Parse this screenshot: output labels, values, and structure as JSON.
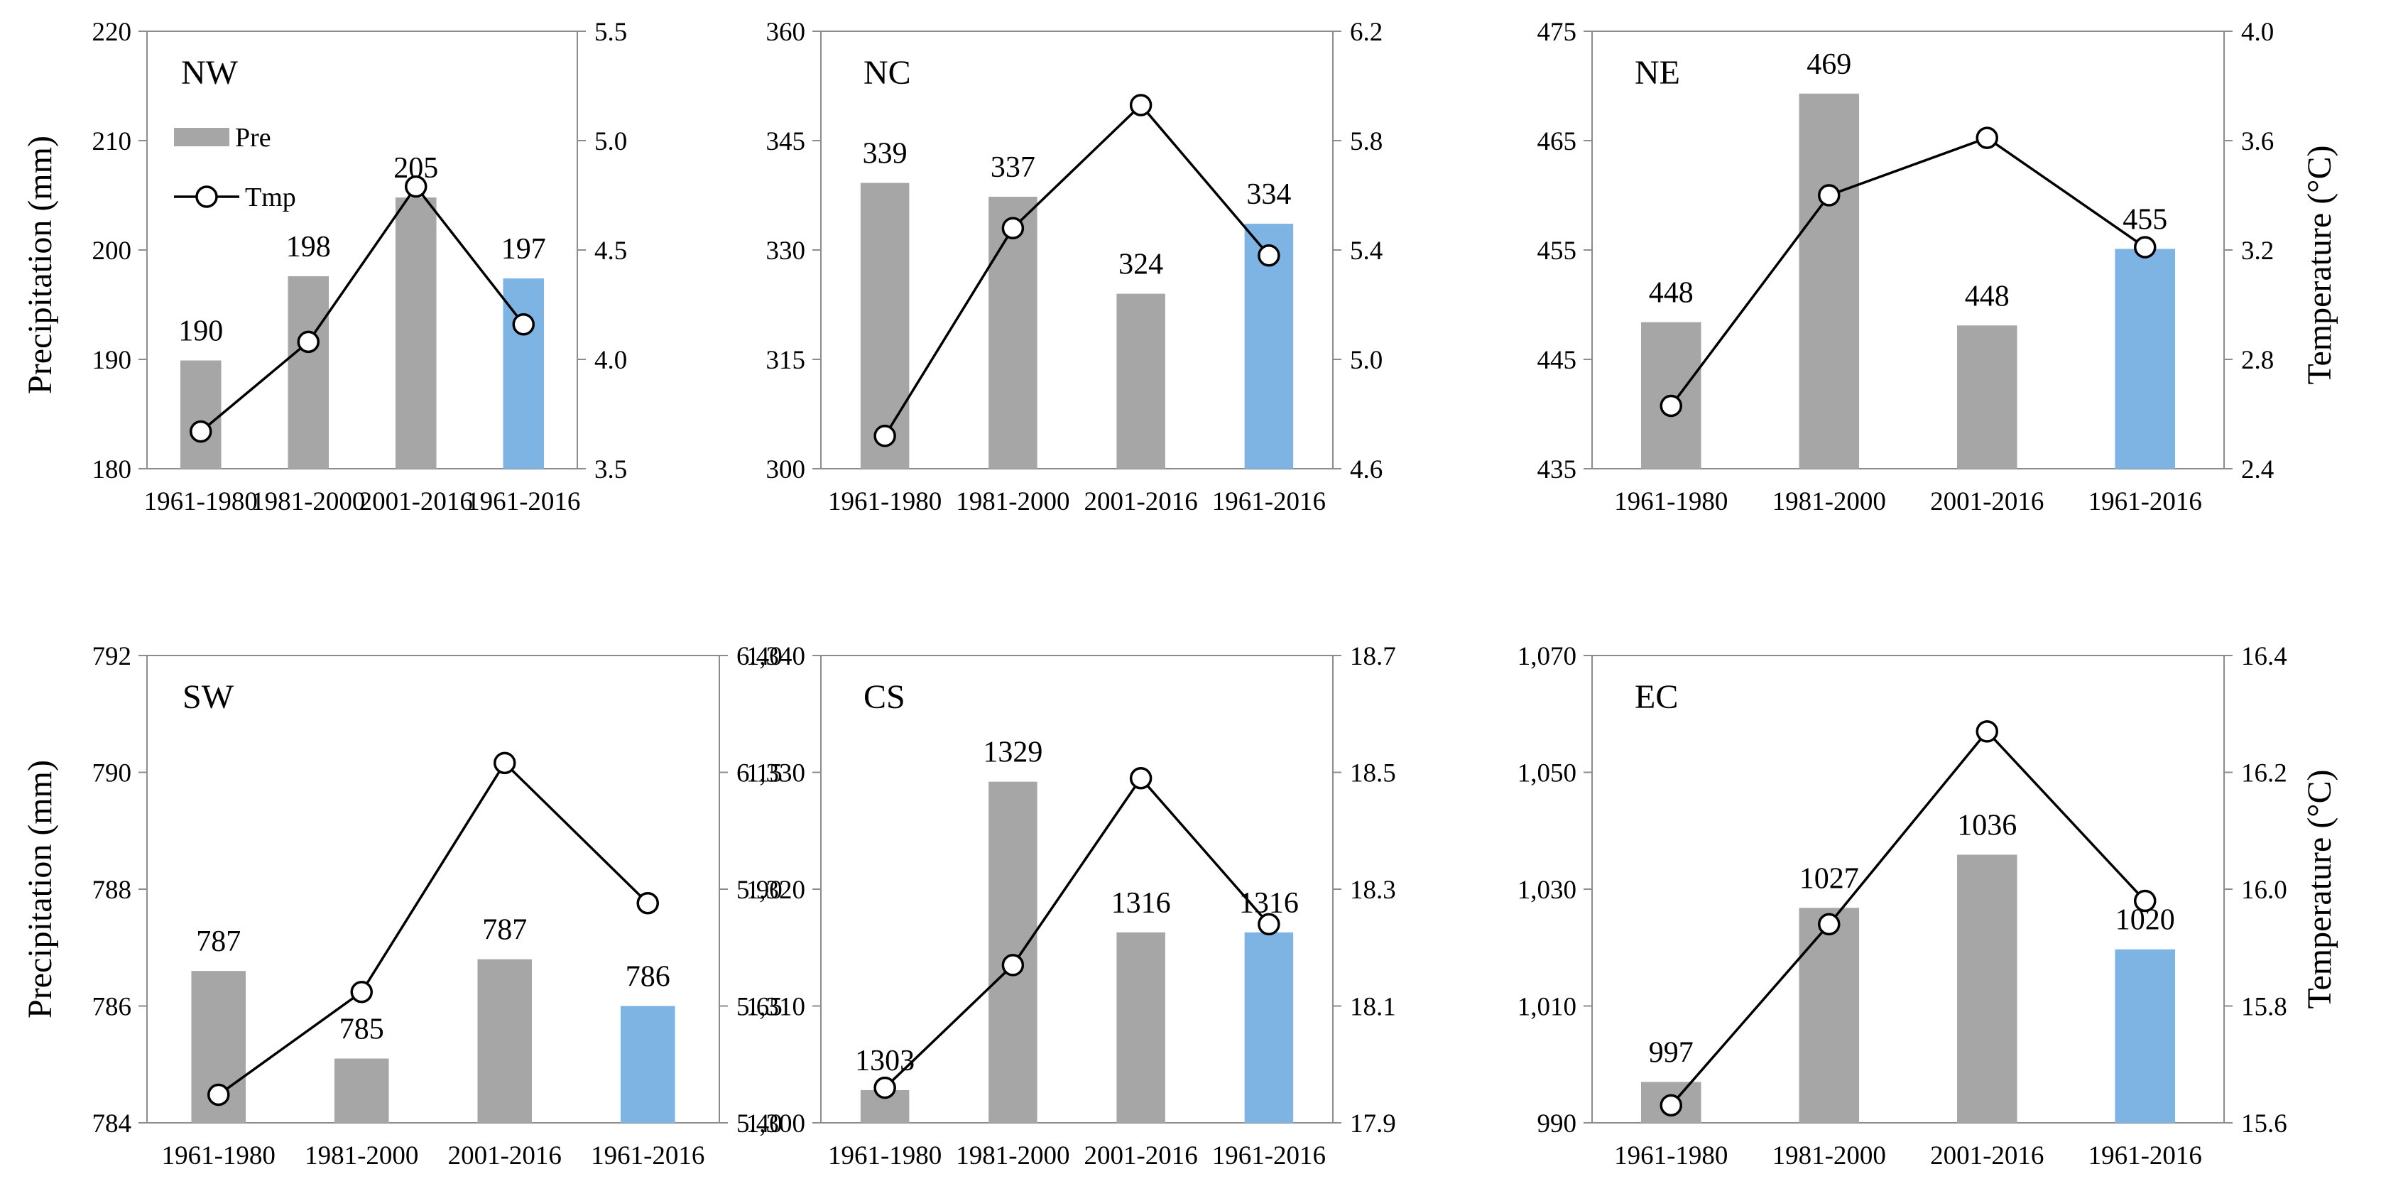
{
  "colors": {
    "bar": "#a6a6a6",
    "bar_highlight": "#7db4e4",
    "line": "#000000",
    "axis": "#8c8c8c"
  },
  "axis_titles": {
    "left": "Precipitation (mm)",
    "right": "Temperature (°C)"
  },
  "legend": {
    "pre": "Pre",
    "tmp": "Tmp"
  },
  "chart_data": [
    {
      "type": "bar",
      "title": "NW",
      "categories": [
        "1961-1980",
        "1981-2000",
        "2001-2016",
        "1961-2016"
      ],
      "series": [
        {
          "name": "Pre",
          "axis": "left",
          "values": [
            189.9,
            197.6,
            204.8,
            197.4
          ],
          "labels": [
            "190",
            "198",
            "205",
            "197"
          ]
        },
        {
          "name": "Tmp",
          "axis": "right",
          "type": "line",
          "values": [
            3.67,
            4.08,
            4.79,
            4.16
          ]
        }
      ],
      "ylim": [
        180,
        220
      ],
      "yticks": [
        "180",
        "190",
        "200",
        "210",
        "220"
      ],
      "y2lim": [
        3.5,
        5.5
      ],
      "y2ticks": [
        "3.5",
        "4.0",
        "4.5",
        "5.0",
        "5.5"
      ]
    },
    {
      "type": "bar",
      "title": "NC",
      "categories": [
        "1961-1980",
        "1981-2000",
        "2001-2016",
        "1961-2016"
      ],
      "series": [
        {
          "name": "Pre",
          "axis": "left",
          "values": [
            339.2,
            337.3,
            324.0,
            333.6
          ],
          "labels": [
            "339",
            "337",
            "324",
            "334"
          ]
        },
        {
          "name": "Tmp",
          "axis": "right",
          "type": "line",
          "values": [
            4.72,
            5.48,
            5.93,
            5.38
          ]
        }
      ],
      "ylim": [
        300,
        360
      ],
      "yticks": [
        "300",
        "315",
        "330",
        "345",
        "360"
      ],
      "y2lim": [
        4.6,
        6.2
      ],
      "y2ticks": [
        "4.6",
        "5.0",
        "5.4",
        "5.8",
        "6.2"
      ]
    },
    {
      "type": "bar",
      "title": "NE",
      "categories": [
        "1961-1980",
        "1981-2000",
        "2001-2016",
        "1961-2016"
      ],
      "series": [
        {
          "name": "Pre",
          "axis": "left",
          "values": [
            448.4,
            469.3,
            448.1,
            455.1
          ],
          "labels": [
            "448",
            "469",
            "448",
            "455"
          ]
        },
        {
          "name": "Tmp",
          "axis": "right",
          "type": "line",
          "values": [
            2.63,
            3.4,
            3.61,
            3.21
          ]
        }
      ],
      "ylim": [
        435,
        475
      ],
      "yticks": [
        "435",
        "445",
        "455",
        "465",
        "475"
      ],
      "y2lim": [
        2.4,
        4.0
      ],
      "y2ticks": [
        "2.4",
        "2.8",
        "3.2",
        "3.6",
        "4.0"
      ]
    },
    {
      "type": "bar",
      "title": "SW",
      "categories": [
        "1961-1980",
        "1981-2000",
        "2001-2016",
        "1961-2016"
      ],
      "series": [
        {
          "name": "Pre",
          "axis": "left",
          "values": [
            786.6,
            785.1,
            786.8,
            786.0
          ],
          "labels": [
            "787",
            "785",
            "787",
            "786"
          ]
        },
        {
          "name": "Tmp",
          "axis": "right",
          "type": "line",
          "values": [
            5.46,
            5.68,
            6.17,
            5.87
          ]
        }
      ],
      "ylim": [
        784,
        792
      ],
      "yticks": [
        "784",
        "786",
        "788",
        "790",
        "792"
      ],
      "y2lim": [
        5.4,
        6.4
      ],
      "y2ticks": [
        "5.40",
        "5.65",
        "5.90",
        "6.15",
        "6.40"
      ]
    },
    {
      "type": "bar",
      "title": "CS",
      "categories": [
        "1961-1980",
        "1981-2000",
        "2001-2016",
        "1961-2016"
      ],
      "series": [
        {
          "name": "Pre",
          "axis": "left",
          "values": [
            1302.8,
            1329.2,
            1316.3,
            1316.3
          ],
          "labels": [
            "1303",
            "1329",
            "1316",
            "1316"
          ]
        },
        {
          "name": "Tmp",
          "axis": "right",
          "type": "line",
          "values": [
            17.96,
            18.17,
            18.49,
            18.24
          ]
        }
      ],
      "ylim": [
        1300,
        1340
      ],
      "yticks": [
        "1,300",
        "1,310",
        "1,320",
        "1,330",
        "1,340"
      ],
      "y2lim": [
        17.9,
        18.7
      ],
      "y2ticks": [
        "17.9",
        "18.1",
        "18.3",
        "18.5",
        "18.7"
      ]
    },
    {
      "type": "bar",
      "title": "EC",
      "categories": [
        "1961-1980",
        "1981-2000",
        "2001-2016",
        "1961-2016"
      ],
      "series": [
        {
          "name": "Pre",
          "axis": "left",
          "values": [
            997.0,
            1026.8,
            1035.9,
            1019.7
          ],
          "labels": [
            "997",
            "1027",
            "1036",
            "1020"
          ]
        },
        {
          "name": "Tmp",
          "axis": "right",
          "type": "line",
          "values": [
            15.63,
            15.94,
            16.27,
            15.98
          ]
        }
      ],
      "ylim": [
        990,
        1070
      ],
      "yticks": [
        "990",
        "1,010",
        "1,030",
        "1,050",
        "1,070"
      ],
      "y2lim": [
        15.6,
        16.4
      ],
      "y2ticks": [
        "15.6",
        "15.8",
        "16.0",
        "16.2",
        "16.4"
      ]
    }
  ]
}
